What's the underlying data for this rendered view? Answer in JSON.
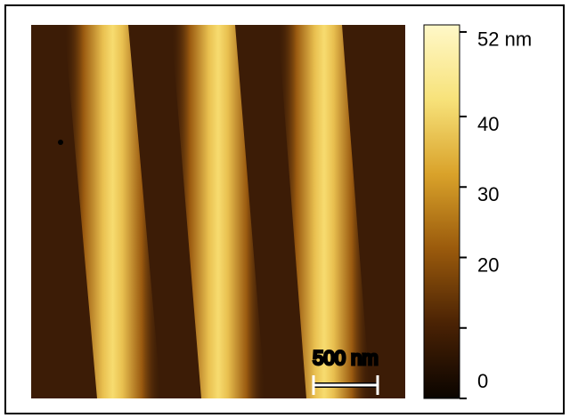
{
  "colorbar": {
    "range": [
      0,
      53
    ],
    "ticks": [
      {
        "value": 52,
        "label": "52 nm"
      },
      40,
      30,
      20,
      {
        "value": 10,
        "label": null
      },
      0
    ],
    "colormap": [
      "#0a0400",
      "#4a2204",
      "#9a5a0c",
      "#d9a22a",
      "#f7e27a",
      "#fff8c8"
    ]
  },
  "scale_bar": {
    "label": "500 nm"
  }
}
